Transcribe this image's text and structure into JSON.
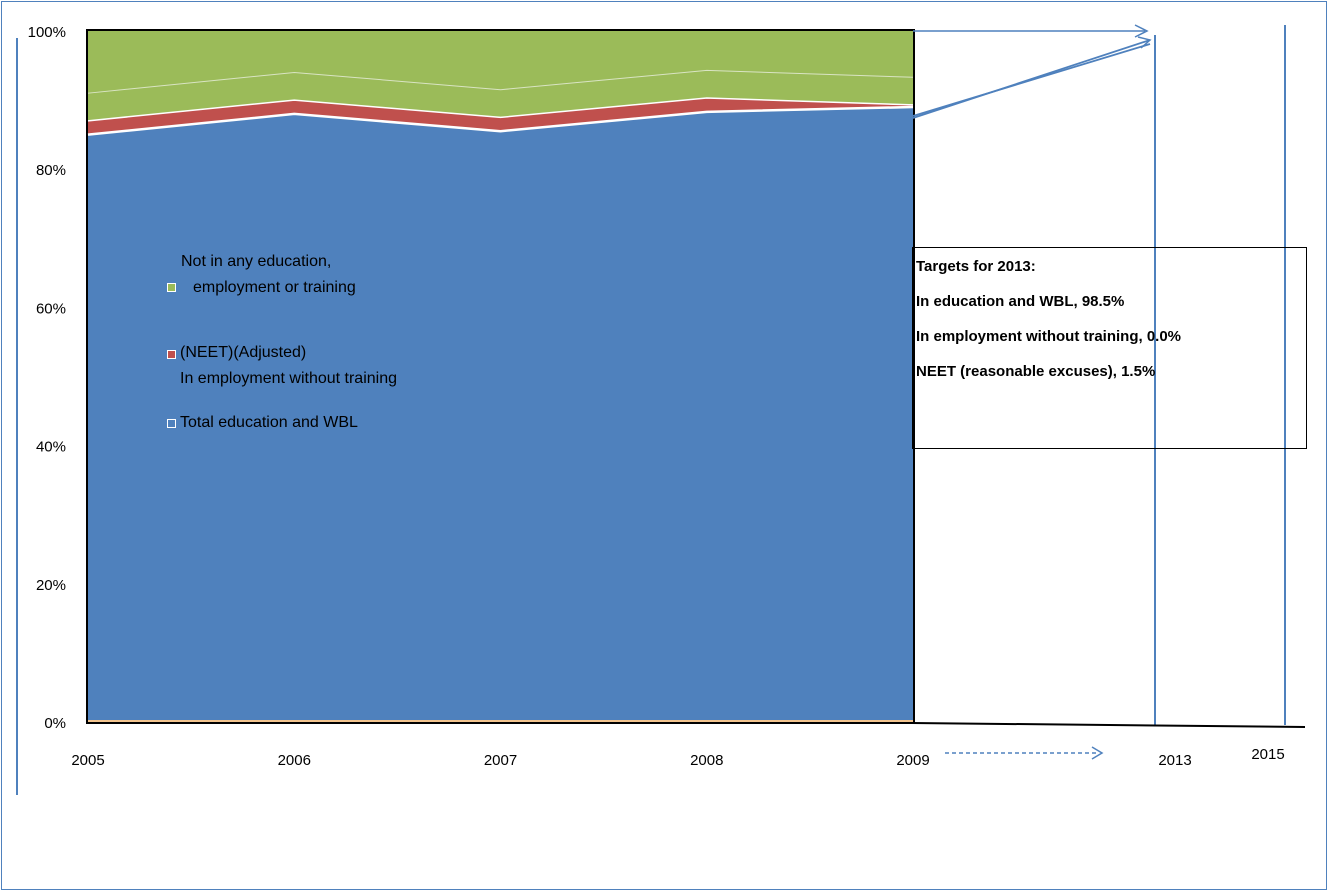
{
  "chart_data": {
    "type": "area",
    "stacked": true,
    "x": [
      "2005",
      "2006",
      "2007",
      "2008",
      "2009"
    ],
    "extra_x_labels": [
      "2013",
      "2015"
    ],
    "y_ticks": [
      "0%",
      "20%",
      "40%",
      "60%",
      "80%",
      "100%"
    ],
    "ylim": [
      0,
      100
    ],
    "series": [
      {
        "name": "Total education and WBL",
        "values": [
          85,
          88,
          85.5,
          88.3,
          89
        ],
        "color": "#4f81bd"
      },
      {
        "name": "In employment without training",
        "values": [
          2,
          2,
          2,
          2,
          0.3
        ],
        "color": "#c0504d"
      },
      {
        "name": "Not in any education, employment or training (NEET)(Adjusted)",
        "values": [
          13,
          10,
          12.5,
          9.7,
          10.7
        ],
        "color": "#9bbb59"
      }
    ],
    "legend": {
      "placement": "left-inside",
      "entries": [
        {
          "line1": "Not in any education,",
          "line2": "employment or training",
          "color": "#9bbb59"
        },
        {
          "line1": "(NEET)(Adjusted)",
          "line2": "In employment without training",
          "color": "#c0504d"
        },
        {
          "line1": "Total education and WBL",
          "line2": "",
          "color": "#4f81bd"
        }
      ]
    },
    "targets": {
      "title": "Targets for 2013:",
      "lines": [
        "In education and WBL, 98.5%",
        "In employment without training, 0.0%",
        "NEET (reasonable excuses), 1.5%"
      ]
    },
    "grid": false
  }
}
